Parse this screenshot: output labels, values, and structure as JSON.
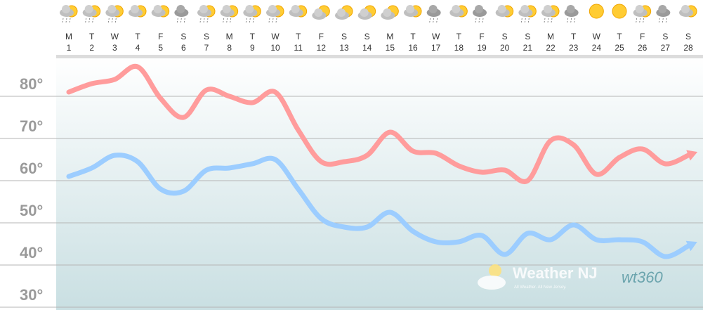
{
  "chart_data": {
    "type": "line",
    "categories": [
      "1",
      "2",
      "3",
      "4",
      "5",
      "6",
      "7",
      "8",
      "9",
      "10",
      "11",
      "12",
      "13",
      "14",
      "15",
      "16",
      "17",
      "18",
      "19",
      "20",
      "21",
      "22",
      "23",
      "24",
      "25",
      "26",
      "27",
      "28"
    ],
    "weekday_labels": [
      "M",
      "T",
      "W",
      "T",
      "F",
      "S",
      "S",
      "M",
      "T",
      "W",
      "T",
      "F",
      "S",
      "S",
      "M",
      "T",
      "W",
      "T",
      "F",
      "S",
      "S",
      "M",
      "T",
      "W",
      "T",
      "F",
      "S",
      "S"
    ],
    "series": [
      {
        "name": "High",
        "color": "#ff9c9c",
        "values": [
          81,
          83,
          84,
          87,
          79.5,
          75,
          81.5,
          80,
          78.5,
          81,
          72,
          64.5,
          64.5,
          66,
          71.5,
          67,
          66.5,
          63.5,
          62,
          62.5,
          60,
          69.5,
          68.5,
          61.5,
          65.5,
          67.5,
          64,
          66
        ]
      },
      {
        "name": "Low",
        "color": "#9ccdff",
        "values": [
          61,
          63,
          66,
          64.5,
          58,
          57.5,
          62.5,
          63,
          64,
          65,
          58,
          51,
          49,
          49,
          52.5,
          48,
          45.5,
          45.5,
          47,
          42.5,
          47.5,
          46,
          49.5,
          46,
          46,
          45.5,
          42,
          44.5
        ]
      }
    ],
    "ylim": [
      30,
      90
    ],
    "yticks": [
      {
        "value": 30,
        "label": "30°"
      },
      {
        "value": 40,
        "label": "40°"
      },
      {
        "value": 50,
        "label": "50°"
      },
      {
        "value": 60,
        "label": "60°"
      },
      {
        "value": 70,
        "label": "70°"
      },
      {
        "value": 80,
        "label": "80°"
      }
    ],
    "grid": true,
    "watermark": {
      "brand": "Weather NJ",
      "tagline": "All Weather. All New Jersey.",
      "logo": "wt360"
    }
  }
}
